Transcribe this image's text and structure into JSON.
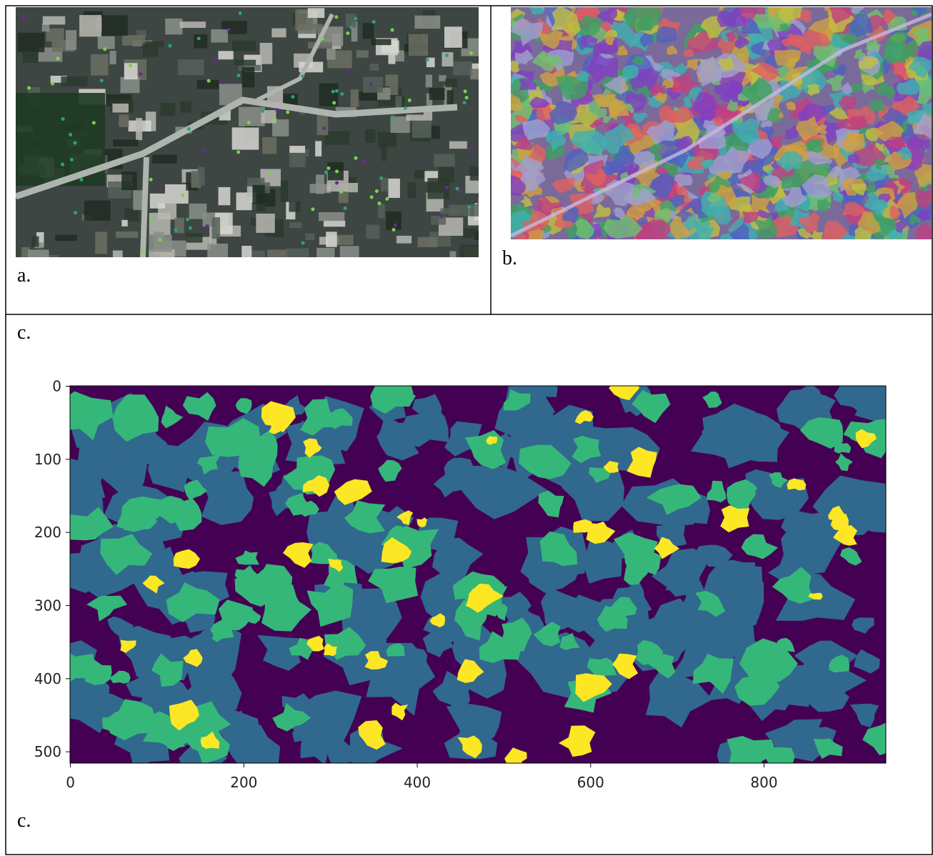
{
  "labels": {
    "a": "a.",
    "b": "b.",
    "c_top": "c.",
    "c_bottom": "c."
  },
  "chart_data": {
    "type": "image",
    "xlim": [
      -0.5,
      940.5
    ],
    "ylim": [
      515.5,
      -0.5
    ],
    "xticks": [
      0,
      200,
      400,
      600,
      800
    ],
    "yticks": [
      0,
      100,
      200,
      300,
      400,
      500
    ],
    "colors": [
      "#440154",
      "#31688e",
      "#35b779",
      "#fde725"
    ]
  }
}
